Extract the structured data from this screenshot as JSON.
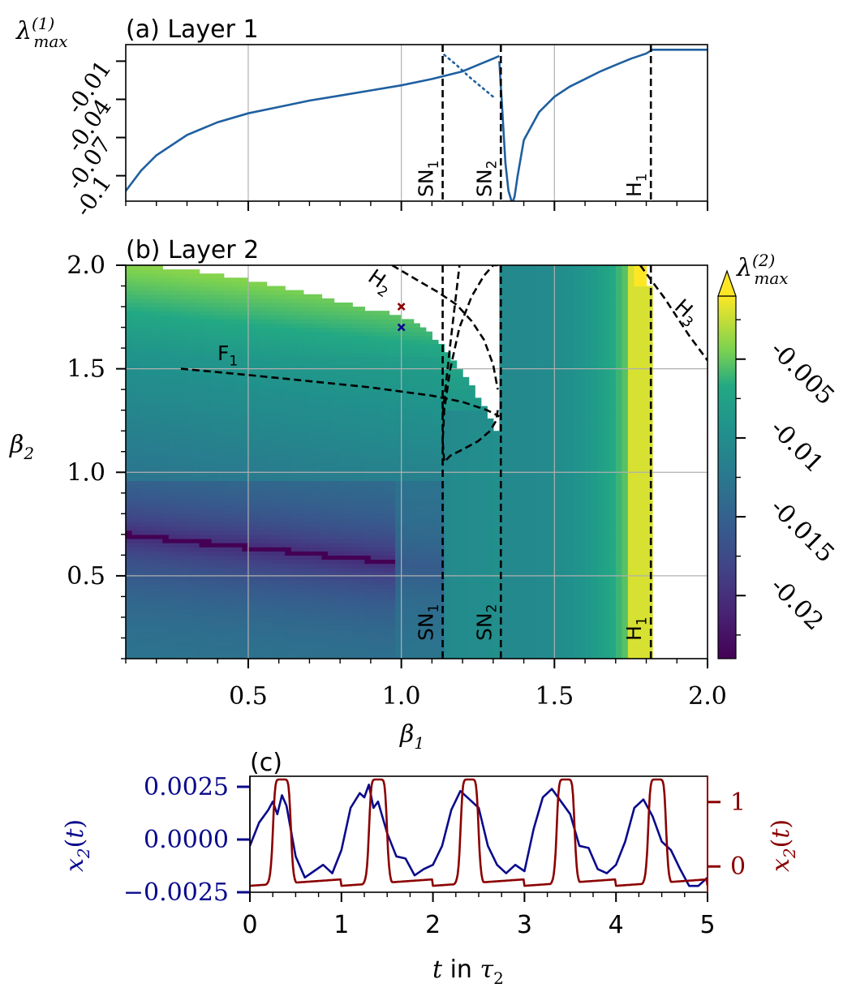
{
  "colors": {
    "line_blue": "#1f5fa0",
    "series_navy": "#0a0a8c",
    "series_dark_red": "#8b0000",
    "grid": "#b0b0b0",
    "dashed": "#000000",
    "viridis_low": "#440154",
    "viridis_mid": "#21918c",
    "viridis_high": "#fde725"
  },
  "chart_data": [
    {
      "id": "layer1",
      "type": "line",
      "title": "(a) Layer 1",
      "ylabel": "λ(1)max",
      "xlim": [
        0.1,
        2.0
      ],
      "ylim": [
        -0.12,
        0.003
      ],
      "yticks": [
        {
          "v": -0.01,
          "label": "-0.01"
        },
        {
          "v": -0.04,
          "label": "-0.04"
        },
        {
          "v": -0.07,
          "label": "-0.07"
        },
        {
          "v": -0.1,
          "label": "-0.1"
        }
      ],
      "grid": true,
      "series": [
        {
          "style": "solid",
          "x": [
            0.1,
            0.15,
            0.2,
            0.3,
            0.4,
            0.5,
            0.6,
            0.7,
            0.8,
            0.9,
            1.0,
            1.1,
            1.2,
            1.25,
            1.3,
            1.32
          ],
          "y": [
            -0.112,
            -0.096,
            -0.084,
            -0.068,
            -0.058,
            -0.051,
            -0.046,
            -0.041,
            -0.037,
            -0.033,
            -0.029,
            -0.024,
            -0.018,
            -0.013,
            -0.008,
            -0.006
          ]
        },
        {
          "style": "dotted",
          "x": [
            1.14,
            1.18,
            1.22,
            1.26,
            1.3
          ],
          "y": [
            -0.005,
            -0.013,
            -0.022,
            -0.03,
            -0.038
          ]
        },
        {
          "style": "solid",
          "x": [
            1.32,
            1.33,
            1.34,
            1.35,
            1.36,
            1.365,
            1.37,
            1.38,
            1.4,
            1.45,
            1.5,
            1.55,
            1.6,
            1.65,
            1.7,
            1.75,
            1.8,
            1.82,
            1.9,
            2.0
          ],
          "y": [
            -0.01,
            -0.05,
            -0.09,
            -0.112,
            -0.12,
            -0.12,
            -0.116,
            -0.1,
            -0.072,
            -0.05,
            -0.038,
            -0.03,
            -0.024,
            -0.018,
            -0.013,
            -0.008,
            -0.004,
            -0.001,
            -0.001,
            -0.001
          ]
        }
      ],
      "vlines": [
        {
          "x": 1.135,
          "label": "SN1"
        },
        {
          "x": 1.325,
          "label": "SN2"
        },
        {
          "x": 1.815,
          "label": "H1"
        }
      ]
    },
    {
      "id": "layer2",
      "type": "heatmap",
      "title": "(b) Layer 2",
      "xlabel": "β1",
      "ylabel": "β2",
      "xlim": [
        0.1,
        2.0
      ],
      "ylim": [
        0.1,
        2.0
      ],
      "xticks": [
        0.5,
        1.0,
        1.5,
        2.0
      ],
      "xtick_labels": [
        "0.5",
        "1.0",
        "1.5",
        "2.0"
      ],
      "yticks": [
        0.5,
        1.0,
        1.5,
        2.0
      ],
      "ytick_labels": [
        "0.5",
        "1.0",
        "1.5",
        "2.0"
      ],
      "grid": true,
      "colorbar": {
        "label": "λ(2)max",
        "min": -0.024,
        "max": -0.001,
        "ticks": [
          -0.005,
          -0.01,
          -0.015,
          -0.02
        ],
        "tick_labels": [
          "-0.005",
          "-0.01",
          "-0.015",
          "-0.02"
        ],
        "extend": "max"
      },
      "curves": [
        {
          "label": "F1",
          "x": [
            0.28,
            0.5,
            0.7,
            0.9,
            1.0,
            1.1,
            1.2,
            1.28,
            1.32
          ],
          "y": [
            1.5,
            1.47,
            1.44,
            1.41,
            1.39,
            1.37,
            1.34,
            1.3,
            1.27
          ]
        },
        {
          "label": "H2",
          "x": [
            0.97,
            1.05,
            1.12,
            1.18,
            1.23,
            1.27,
            1.3,
            1.315
          ],
          "y": [
            2.0,
            1.93,
            1.87,
            1.81,
            1.73,
            1.64,
            1.52,
            1.4
          ]
        },
        {
          "label": "",
          "x": [
            1.315,
            1.31,
            1.29,
            1.25,
            1.2,
            1.16,
            1.14,
            1.135,
            1.14,
            1.16,
            1.19,
            1.23,
            1.27,
            1.3,
            1.315
          ],
          "y": [
            1.3,
            1.25,
            1.2,
            1.15,
            1.11,
            1.08,
            1.05,
            1.15,
            1.3,
            1.5,
            1.7,
            1.85,
            1.95,
            2.0,
            2.0
          ]
        },
        {
          "label": "H3",
          "x": [
            1.78,
            1.82,
            1.86,
            1.9,
            1.94,
            1.98,
            2.0
          ],
          "y": [
            2.0,
            1.92,
            1.84,
            1.75,
            1.66,
            1.58,
            1.54
          ]
        }
      ],
      "vlines": [
        {
          "x": 1.135,
          "label": "SN1"
        },
        {
          "x": 1.325,
          "label": "SN2"
        },
        {
          "x": 1.815,
          "label": "H1"
        }
      ],
      "markers": [
        {
          "x": 1.0,
          "y": 1.8,
          "color": "#8b0000"
        },
        {
          "x": 1.0,
          "y": 1.7,
          "color": "#0a0a8c"
        }
      ]
    },
    {
      "id": "timeseries",
      "type": "line",
      "title": "(c)",
      "xlabel": "t in τ2",
      "xlim": [
        0,
        5
      ],
      "xticks": [
        0,
        1,
        2,
        3,
        4,
        5
      ],
      "xtick_labels": [
        "0",
        "1",
        "2",
        "3",
        "4",
        "5"
      ],
      "y_left": {
        "label": "x2(t)",
        "ylim": [
          -0.0025,
          0.003
        ],
        "ticks": [
          0.0025,
          0.0,
          -0.0025
        ],
        "tick_labels": [
          "0.0025",
          "0.0000",
          "−0.0025"
        ]
      },
      "y_right": {
        "label": "x2(t)",
        "ylim": [
          -0.4,
          1.4
        ],
        "ticks": [
          1,
          0
        ],
        "tick_labels": [
          "1",
          "0"
        ]
      },
      "series": [
        {
          "axis": "left",
          "x": [
            0,
            0.1,
            0.2,
            0.25,
            0.3,
            0.35,
            0.4,
            0.5,
            0.6,
            0.7,
            0.8,
            0.9,
            1.0,
            1.1,
            1.2,
            1.25,
            1.3,
            1.35,
            1.4,
            1.5,
            1.6,
            1.7,
            1.8,
            1.9,
            2.0,
            2.1,
            2.2,
            2.3,
            2.4,
            2.5,
            2.6,
            2.7,
            2.8,
            2.9,
            3.0,
            3.1,
            3.2,
            3.3,
            3.4,
            3.5,
            3.6,
            3.7,
            3.8,
            3.9,
            4.0,
            4.1,
            4.2,
            4.3,
            4.4,
            4.5,
            4.6,
            4.7,
            4.8,
            4.9,
            5.0
          ],
          "y": [
            -0.0003,
            0.0008,
            0.0014,
            0.0018,
            0.0012,
            0.0021,
            0.0016,
            -0.0008,
            -0.0018,
            -0.0015,
            -0.0012,
            -0.0016,
            -0.0005,
            0.0015,
            0.0022,
            0.002,
            0.0026,
            0.0015,
            0.0018,
            0.0003,
            -0.0008,
            -0.0009,
            -0.0017,
            -0.0014,
            -0.0012,
            -0.0003,
            0.0014,
            0.0023,
            0.0019,
            0.0015,
            -0.0003,
            -0.0012,
            -0.0016,
            -0.0012,
            -0.0015,
            0.0005,
            0.002,
            0.0024,
            0.0018,
            0.0012,
            -0.0003,
            -0.0004,
            -0.0014,
            -0.0016,
            -0.0012,
            -0.0001,
            0.0015,
            0.0019,
            0.0011,
            -0.0001,
            -0.0005,
            -0.0014,
            -0.0022,
            -0.0022,
            -0.0018
          ]
        },
        {
          "axis": "right",
          "peaks": [
            0.35,
            1.4,
            2.4,
            3.45,
            4.45
          ],
          "baseline": -0.3,
          "peak": 1.35,
          "width": 0.1
        }
      ]
    }
  ]
}
